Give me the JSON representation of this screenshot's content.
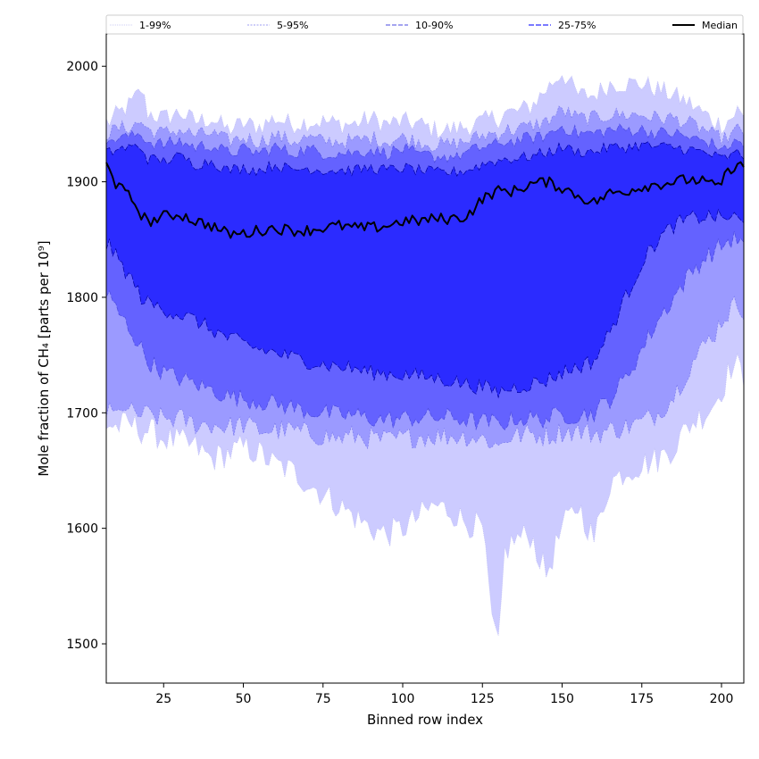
{
  "chart_data": {
    "type": "area",
    "title": "",
    "xlabel": "Binned row index",
    "ylabel": "Mole fraction of CH₄ [parts per 10⁹]",
    "xlim": [
      7,
      207
    ],
    "ylim": [
      1466,
      2028
    ],
    "x_ticks": [
      25,
      50,
      75,
      100,
      125,
      150,
      175,
      200
    ],
    "y_ticks": [
      1500,
      1600,
      1700,
      1800,
      1900,
      2000
    ],
    "grid": false,
    "legend_position": "top (horizontal, above plot)",
    "x_anchor": [
      8,
      10,
      15,
      18,
      20,
      25,
      30,
      35,
      40,
      45,
      50,
      55,
      60,
      65,
      70,
      75,
      80,
      85,
      90,
      95,
      100,
      105,
      110,
      115,
      120,
      125,
      128,
      130,
      132,
      135,
      140,
      145,
      150,
      155,
      160,
      165,
      170,
      175,
      180,
      185,
      190,
      195,
      198,
      200,
      203,
      205,
      207
    ],
    "bands": [
      {
        "name": "1-99%",
        "color": "#cccbff",
        "edge": "#bdbdf4",
        "dash": "1,1",
        "upper": [
          1952,
          1957,
          1968,
          1980,
          1960,
          1955,
          1960,
          1952,
          1955,
          1945,
          1950,
          1948,
          1955,
          1950,
          1952,
          1952,
          1950,
          1950,
          1955,
          1950,
          1952,
          1950,
          1945,
          1945,
          1948,
          1952,
          1955,
          1955,
          1960,
          1960,
          1965,
          1980,
          1995,
          1975,
          1975,
          1985,
          1985,
          1985,
          1980,
          1975,
          1968,
          1958,
          1952,
          1950,
          1955,
          1962,
          1955
        ],
        "lower": [
          1690,
          1688,
          1690,
          1685,
          1685,
          1678,
          1675,
          1670,
          1660,
          1665,
          1670,
          1665,
          1655,
          1650,
          1640,
          1630,
          1620,
          1610,
          1600,
          1595,
          1600,
          1610,
          1620,
          1615,
          1605,
          1600,
          1520,
          1495,
          1580,
          1590,
          1595,
          1560,
          1600,
          1620,
          1590,
          1640,
          1650,
          1655,
          1660,
          1670,
          1690,
          1700,
          1710,
          1720,
          1740,
          1740,
          1730
        ]
      },
      {
        "name": "5-95%",
        "color": "#9b9aff",
        "edge": "#7c7cee",
        "dash": "2,1.5",
        "upper": [
          1942,
          1945,
          1948,
          1952,
          1945,
          1942,
          1945,
          1940,
          1942,
          1935,
          1938,
          1935,
          1940,
          1935,
          1938,
          1935,
          1935,
          1935,
          1938,
          1935,
          1938,
          1935,
          1932,
          1932,
          1935,
          1940,
          1942,
          1942,
          1945,
          1945,
          1948,
          1952,
          1962,
          1955,
          1955,
          1958,
          1958,
          1958,
          1955,
          1955,
          1950,
          1945,
          1940,
          1938,
          1940,
          1945,
          1942
        ],
        "lower": [
          1700,
          1698,
          1700,
          1698,
          1698,
          1695,
          1695,
          1690,
          1690,
          1688,
          1690,
          1685,
          1685,
          1685,
          1682,
          1680,
          1678,
          1680,
          1678,
          1676,
          1678,
          1680,
          1680,
          1680,
          1680,
          1678,
          1675,
          1670,
          1678,
          1680,
          1682,
          1680,
          1684,
          1684,
          1682,
          1685,
          1688,
          1692,
          1700,
          1715,
          1740,
          1760,
          1770,
          1780,
          1790,
          1795,
          1790
        ]
      },
      {
        "name": "10-90%",
        "color": "#6462ff",
        "edge": "#4b4be0",
        "dash": "5,2",
        "upper": [
          1935,
          1938,
          1940,
          1942,
          1935,
          1932,
          1935,
          1930,
          1932,
          1925,
          1928,
          1925,
          1930,
          1925,
          1928,
          1925,
          1925,
          1925,
          1928,
          1925,
          1928,
          1925,
          1922,
          1922,
          1925,
          1930,
          1932,
          1932,
          1935,
          1935,
          1938,
          1940,
          1948,
          1942,
          1942,
          1945,
          1945,
          1945,
          1942,
          1942,
          1938,
          1935,
          1932,
          1930,
          1932,
          1935,
          1932
        ],
        "lower": [
          1800,
          1790,
          1770,
          1755,
          1745,
          1735,
          1730,
          1725,
          1720,
          1715,
          1712,
          1710,
          1708,
          1705,
          1702,
          1700,
          1698,
          1698,
          1695,
          1694,
          1695,
          1696,
          1696,
          1696,
          1694,
          1692,
          1692,
          1690,
          1692,
          1694,
          1695,
          1695,
          1698,
          1698,
          1700,
          1712,
          1730,
          1755,
          1780,
          1800,
          1820,
          1835,
          1840,
          1845,
          1850,
          1850,
          1845
        ]
      },
      {
        "name": "25-75%",
        "color": "#2b2bff",
        "edge": "#0000a0",
        "dash": "6,2",
        "upper": [
          1925,
          1928,
          1930,
          1930,
          1920,
          1918,
          1922,
          1915,
          1918,
          1910,
          1912,
          1910,
          1915,
          1910,
          1912,
          1910,
          1910,
          1910,
          1912,
          1910,
          1912,
          1910,
          1908,
          1908,
          1910,
          1915,
          1918,
          1918,
          1920,
          1920,
          1922,
          1925,
          1930,
          1926,
          1926,
          1930,
          1930,
          1932,
          1930,
          1930,
          1928,
          1925,
          1922,
          1920,
          1922,
          1925,
          1922
        ],
        "lower": [
          1845,
          1835,
          1815,
          1800,
          1795,
          1790,
          1785,
          1780,
          1772,
          1765,
          1760,
          1755,
          1752,
          1748,
          1745,
          1742,
          1740,
          1738,
          1735,
          1734,
          1733,
          1732,
          1730,
          1728,
          1725,
          1722,
          1720,
          1718,
          1720,
          1722,
          1725,
          1728,
          1735,
          1740,
          1745,
          1770,
          1800,
          1830,
          1850,
          1862,
          1868,
          1870,
          1870,
          1868,
          1870,
          1868,
          1862
        ]
      }
    ],
    "series": [
      {
        "name": "Median",
        "color": "#000000",
        "values": [
          1915,
          1898,
          1885,
          1872,
          1865,
          1870,
          1872,
          1866,
          1862,
          1855,
          1855,
          1858,
          1860,
          1858,
          1858,
          1860,
          1862,
          1860,
          1860,
          1862,
          1866,
          1866,
          1868,
          1868,
          1870,
          1885,
          1890,
          1892,
          1892,
          1892,
          1898,
          1900,
          1895,
          1888,
          1882,
          1890,
          1892,
          1896,
          1898,
          1900,
          1902,
          1900,
          1895,
          1900,
          1912,
          1915,
          1912
        ]
      }
    ],
    "legend": [
      "1-99%",
      "5-95%",
      "10-90%",
      "25-75%",
      "Median"
    ]
  }
}
